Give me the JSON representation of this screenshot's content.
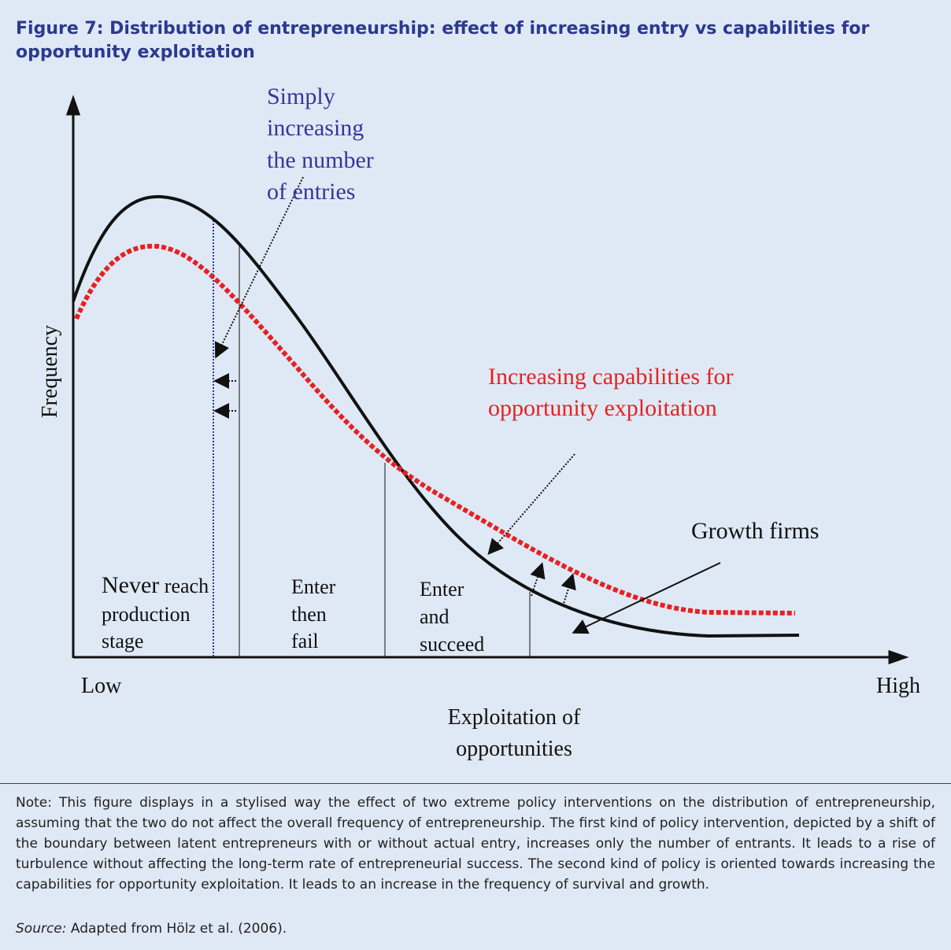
{
  "title": "Figure 7: Distribution of entrepreneurship: effect of increasing entry vs capabilities for opportunity exploitation",
  "diagram": {
    "y_axis_label": "Frequency",
    "x_low": "Low",
    "x_high": "High",
    "x_axis_label": [
      "Exploitation of",
      "opportunities"
    ],
    "entry_annotation": [
      "Simply",
      "increasing",
      "the number",
      "of entries"
    ],
    "capability_annotation": [
      "Increasing capabilities for",
      "opportunity exploitation"
    ],
    "growth_label": "Growth firms",
    "regions": [
      [
        "Never reach",
        "production",
        "stage"
      ],
      [
        "Enter",
        "then",
        "fail"
      ],
      [
        "Enter",
        "and",
        "succeed"
      ]
    ]
  },
  "note": "Note: This figure displays in a stylised way the effect of two extreme policy interventions on the distribution of entrepreneurship, assuming that the two do not affect the overall frequency of entrepreneurship. The first kind of policy intervention, depicted by a shift of the boundary between latent entrepreneurs with or without actual entry, increases only the number of entrants. It leads to a rise of turbulence without affecting the long-term rate of entrepreneurial success. The second kind of policy is oriented towards increasing the capabilities for opportunity exploitation. It leads to an increase in the frequency of survival and growth.",
  "source_label": "Source:",
  "source_text": "Adapted from Hölz et al. (2006)."
}
